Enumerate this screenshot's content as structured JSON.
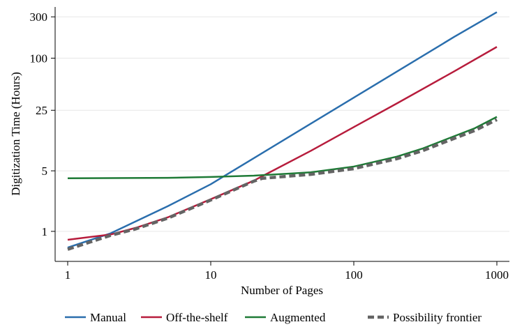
{
  "chart_data": {
    "type": "line",
    "title": "",
    "xlabel": "Number of Pages",
    "ylabel": "Digitization Time (Hours)",
    "x_scale": "log",
    "y_scale": "log",
    "xlim": [
      1,
      1000
    ],
    "ylim": [
      0.45,
      390
    ],
    "x_ticks": [
      {
        "value": 1,
        "label": "1"
      },
      {
        "value": 10,
        "label": "10"
      },
      {
        "value": 100,
        "label": "100"
      },
      {
        "value": 1000,
        "label": "1000"
      }
    ],
    "y_ticks": [
      {
        "value": 1,
        "label": "1"
      },
      {
        "value": 5,
        "label": "5"
      },
      {
        "value": 25,
        "label": "25"
      },
      {
        "value": 100,
        "label": "100"
      },
      {
        "value": 300,
        "label": "300"
      }
    ],
    "grid": true,
    "legend_position": "bottom",
    "series": [
      {
        "name": "Manual",
        "color": "#2a6ead",
        "style": "solid",
        "x": [
          1,
          2,
          5,
          10,
          12,
          20,
          50,
          100,
          200,
          500,
          1000
        ],
        "y": [
          0.65,
          0.95,
          1.95,
          3.5,
          4.2,
          7.0,
          17.5,
          35,
          70,
          175,
          340
        ]
      },
      {
        "name": "Off-the-shelf",
        "color": "#b71c3c",
        "style": "solid",
        "x": [
          1,
          2,
          3,
          5,
          10,
          20,
          23,
          50,
          100,
          200,
          500,
          1000
        ],
        "y": [
          0.8,
          0.92,
          1.1,
          1.45,
          2.35,
          3.85,
          4.35,
          8.5,
          16,
          30,
          70,
          135
        ]
      },
      {
        "name": "Augmented",
        "color": "#1e7a36",
        "style": "solid",
        "x": [
          1,
          5,
          10,
          20,
          50,
          100,
          200,
          300,
          500,
          700,
          1000
        ],
        "y": [
          4.1,
          4.15,
          4.25,
          4.4,
          4.8,
          5.6,
          7.3,
          9.0,
          12.5,
          15.5,
          21
        ]
      },
      {
        "name": "Possibility frontier",
        "color": "#646464",
        "style": "dashed",
        "x": [
          1,
          2,
          3,
          5,
          10,
          20,
          23,
          50,
          100,
          200,
          300,
          500,
          700,
          1000
        ],
        "y": [
          0.62,
          0.9,
          1.07,
          1.42,
          2.3,
          3.8,
          4.1,
          4.55,
          5.3,
          6.9,
          8.5,
          11.8,
          14.6,
          19.5
        ]
      }
    ]
  }
}
